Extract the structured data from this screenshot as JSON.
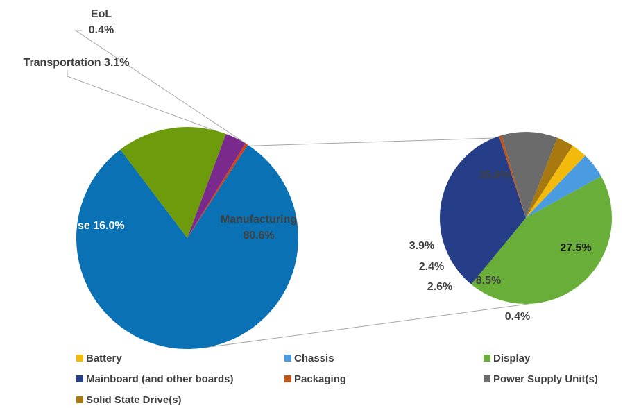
{
  "chart_data": [
    {
      "type": "pie",
      "slices": [
        {
          "label": "Manufacturing",
          "value": 80.6,
          "value_label": "80.6%",
          "color": "#0A72B4"
        },
        {
          "label": "Use",
          "value": 16.0,
          "value_label": "16.0%",
          "color": "#6E9B0C"
        },
        {
          "label": "Transportation",
          "value": 3.1,
          "value_label": "3.1%",
          "color": "#7A2A8C"
        },
        {
          "label": "EoL",
          "value": 0.4,
          "value_label": "0.4%",
          "color": "#D0441B"
        }
      ]
    },
    {
      "type": "pie",
      "breakdown_of": "Manufacturing",
      "slices": [
        {
          "label": "Display",
          "value": 35.6,
          "value_label": "35.6%",
          "color": "#6AAE3A"
        },
        {
          "label": "Mainboard (and other boards)",
          "value": 27.5,
          "value_label": "27.5%",
          "color": "#263E87"
        },
        {
          "label": "Packaging",
          "value": 0.4,
          "value_label": "0.4%",
          "color": "#C2561A"
        },
        {
          "label": "Power Supply Unit(s)",
          "value": 8.5,
          "value_label": "8.5%",
          "color": "#6B6B6B"
        },
        {
          "label": "Solid State Drive(s)",
          "value": 2.6,
          "value_label": "2.6%",
          "color": "#A8790E"
        },
        {
          "label": "Battery",
          "value": 2.4,
          "value_label": "2.4%",
          "color": "#F2BA0C"
        },
        {
          "label": "Chassis",
          "value": 3.9,
          "value_label": "3.9%",
          "color": "#4A9BE0"
        }
      ],
      "legend": [
        {
          "label": "Battery",
          "color": "#F2BA0C"
        },
        {
          "label": "Chassis",
          "color": "#4A9BE0"
        },
        {
          "label": "Display",
          "color": "#6AAE3A"
        },
        {
          "label": "Mainboard (and other boards)",
          "color": "#263E87"
        },
        {
          "label": "Packaging",
          "color": "#C2561A"
        },
        {
          "label": "Power Supply Unit(s)",
          "color": "#6B6B6B"
        },
        {
          "label": "Solid State Drive(s)",
          "color": "#A8790E"
        }
      ],
      "legend_position": "bottom"
    }
  ]
}
